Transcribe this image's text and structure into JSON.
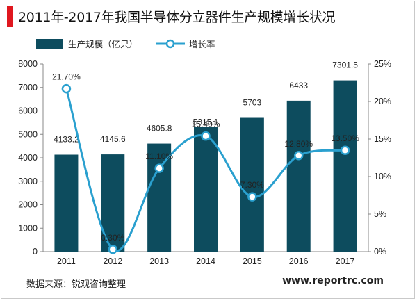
{
  "title": "2011年-2017年我国半导体分立器件生产规模增长状况",
  "footer": {
    "source": "数据来源：锐观咨询整理",
    "url": "www.reportrc.com"
  },
  "colors": {
    "bar": "#0d4c5e",
    "line": "#2aa0cf",
    "accent": "#e0171f"
  },
  "chart_data": {
    "type": "bar",
    "categories": [
      "2011",
      "2012",
      "2013",
      "2014",
      "2015",
      "2016",
      "2017"
    ],
    "series": [
      {
        "name": "生产规模（亿只）",
        "type": "bar",
        "axis": "left",
        "values": [
          4133.2,
          4145.6,
          4605.8,
          5315.1,
          5703,
          6433,
          7301.5
        ],
        "labels": [
          "4133.2",
          "4145.6",
          "4605.8",
          "5315.1",
          "5703",
          "6433",
          "7301.5"
        ]
      },
      {
        "name": "增长率",
        "type": "line",
        "smooth": true,
        "axis": "right",
        "values": [
          21.7,
          0.3,
          11.1,
          15.4,
          7.3,
          12.8,
          13.5
        ],
        "labels": [
          "21.70%",
          "0.30%",
          "11.10%",
          "15.40%",
          "7.30%",
          "12.80%",
          "13.50%"
        ]
      }
    ],
    "y_left": {
      "lim": [
        0,
        8000
      ],
      "ticks": [
        "0",
        "1000",
        "2000",
        "3000",
        "4000",
        "5000",
        "6000",
        "7000",
        "8000"
      ]
    },
    "y_right": {
      "lim": [
        0,
        25
      ],
      "ticks": [
        "0%",
        "5%",
        "10%",
        "15%",
        "20%",
        "25%"
      ]
    },
    "legend": "top-left",
    "grid": false
  }
}
